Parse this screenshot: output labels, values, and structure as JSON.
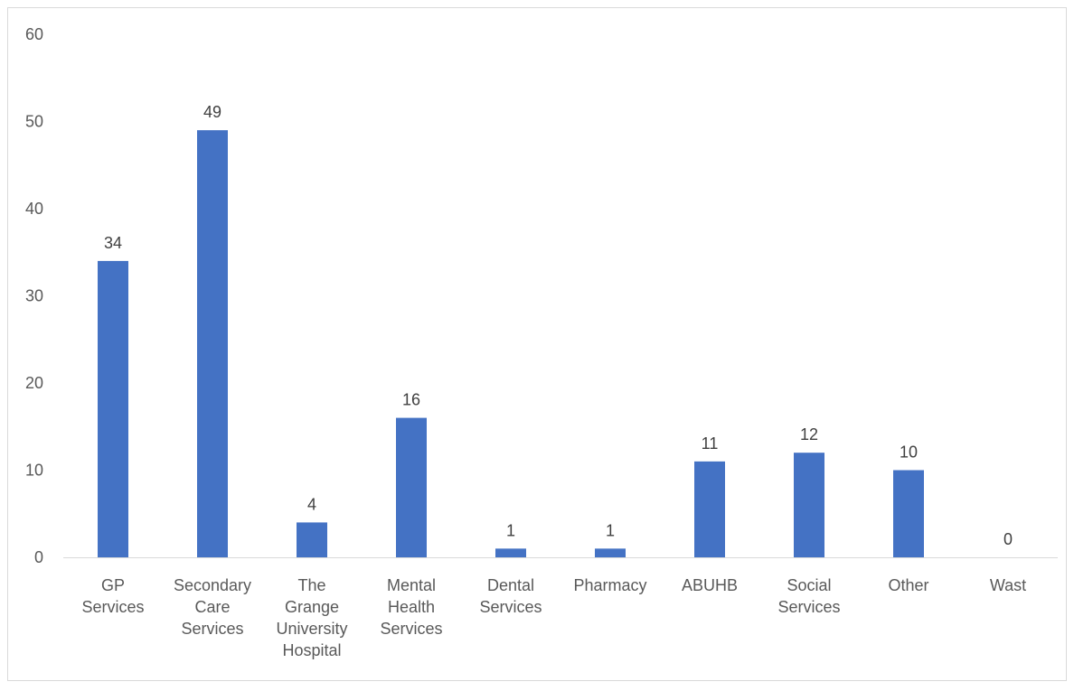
{
  "chart_data": {
    "type": "bar",
    "title": "",
    "xlabel": "",
    "ylabel": "",
    "ylim": [
      0,
      60
    ],
    "yticks": [
      0,
      10,
      20,
      30,
      40,
      50,
      60
    ],
    "grid": false,
    "legend": "none",
    "bar_color": "#4472C4",
    "categories": [
      [
        "GP",
        "Services"
      ],
      [
        "Secondary",
        "Care",
        "Services"
      ],
      [
        "The",
        "Grange",
        "University",
        "Hospital"
      ],
      [
        "Mental",
        "Health",
        "Services"
      ],
      [
        "Dental",
        "Services"
      ],
      [
        "Pharmacy"
      ],
      [
        "ABUHB"
      ],
      [
        "Social",
        "Services"
      ],
      [
        "Other"
      ],
      [
        "Wast"
      ]
    ],
    "values": [
      34,
      49,
      4,
      16,
      1,
      1,
      11,
      12,
      10,
      0
    ],
    "data_labels": [
      "34",
      "49",
      "4",
      "16",
      "1",
      "1",
      "11",
      "12",
      "10",
      "0"
    ]
  }
}
